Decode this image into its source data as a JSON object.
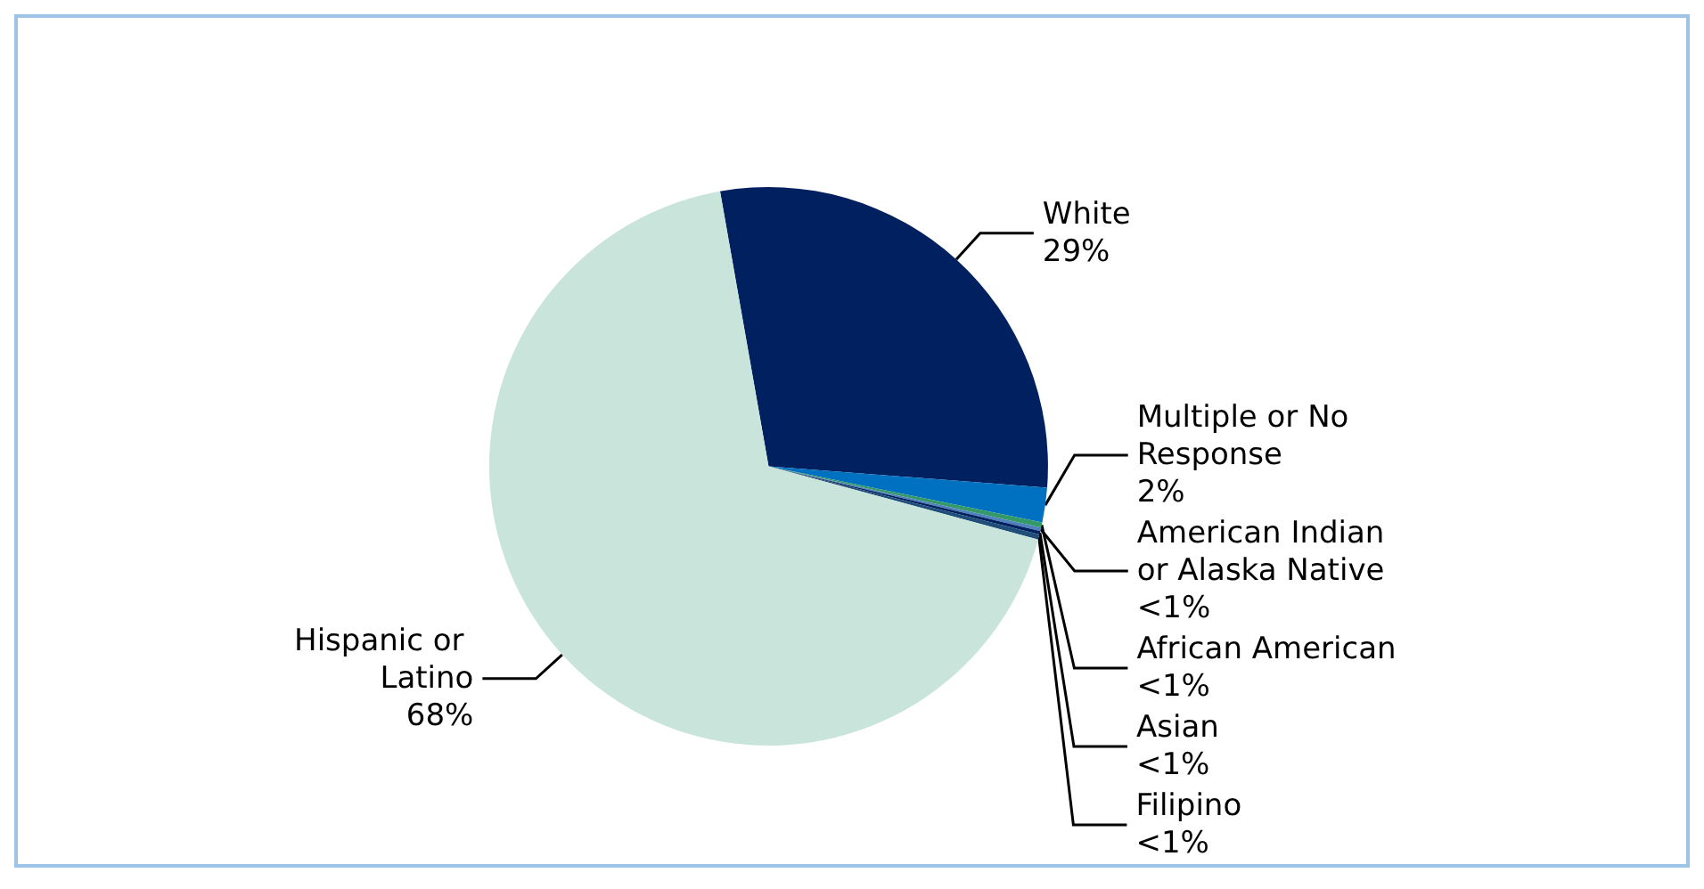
{
  "chart_data": {
    "type": "pie",
    "categories": [
      "White",
      "Multiple or No Response",
      "African American",
      "American Indian or Alaska Native",
      "Asian",
      "Filipino",
      "Hispanic or Latino"
    ],
    "values": [
      29,
      2,
      0.3,
      0.2,
      0.2,
      0.3,
      68
    ],
    "value_labels": [
      "29%",
      "2%",
      "<1%",
      "<1%",
      "<1%",
      "<1%",
      "68%"
    ],
    "colors": [
      "#002060",
      "#0070c0",
      "#339966",
      "#4f81bd",
      "#002060",
      "#1f4e79",
      "#c9e4da"
    ],
    "legend": false
  }
}
